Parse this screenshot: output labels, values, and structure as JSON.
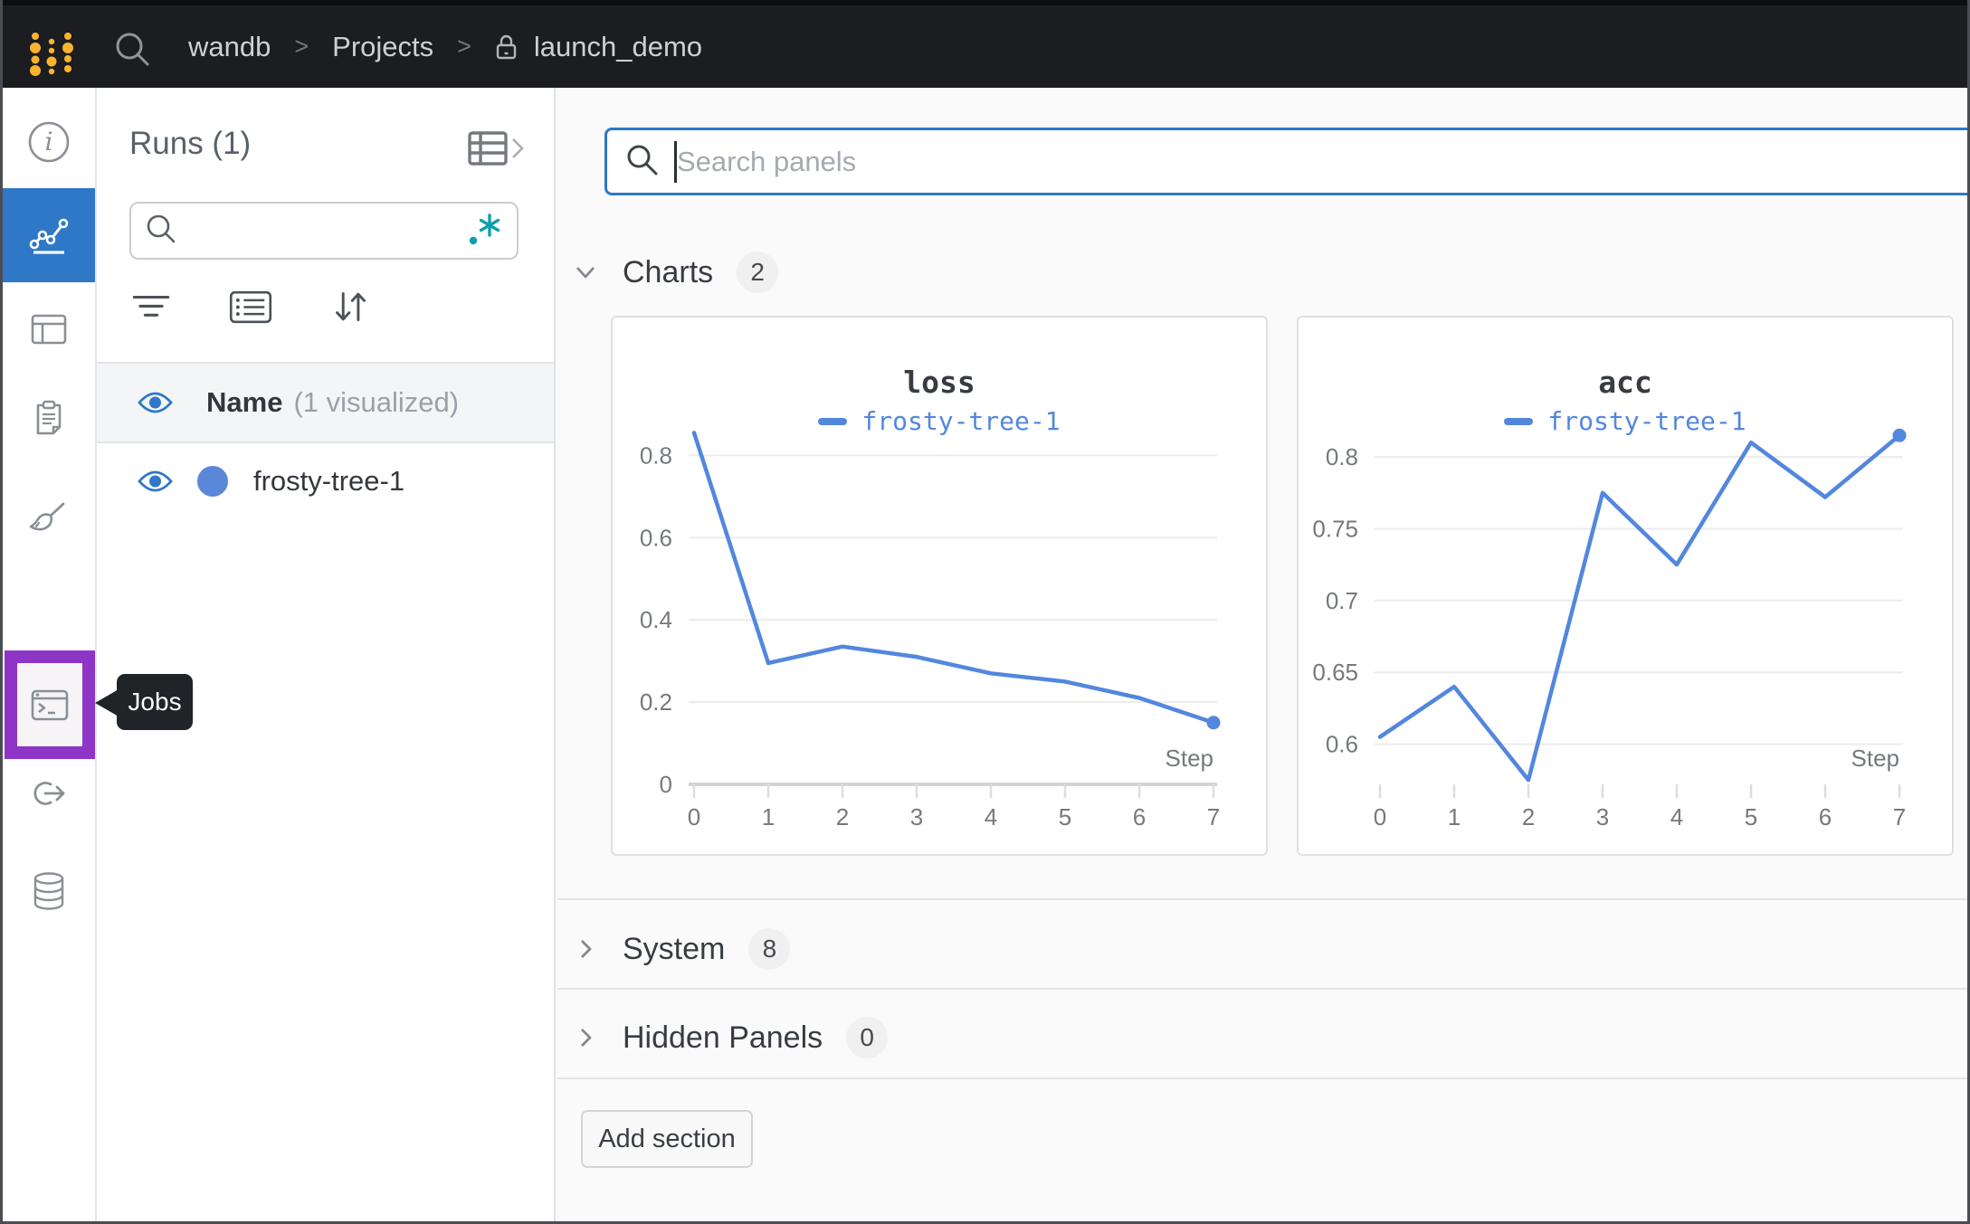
{
  "topbar": {
    "breadcrumb": {
      "team": "wandb",
      "section": "Projects",
      "project": "launch_demo",
      "separator": ">"
    }
  },
  "nav": {
    "tooltip_label": "Jobs",
    "items": [
      {
        "id": "overview",
        "icon": "info-icon",
        "selected": false
      },
      {
        "id": "workspace",
        "icon": "chart-icon",
        "selected": true
      },
      {
        "id": "runs-table",
        "icon": "table-icon",
        "selected": false
      },
      {
        "id": "logs",
        "icon": "clipboard-icon",
        "selected": false
      },
      {
        "id": "sweeps",
        "icon": "broom-icon",
        "selected": false
      },
      {
        "id": "jobs",
        "icon": "terminal-icon",
        "selected": false,
        "highlighted": true
      },
      {
        "id": "launch",
        "icon": "launch-arrow-icon",
        "selected": false
      },
      {
        "id": "artifacts",
        "icon": "database-icon",
        "selected": false
      }
    ]
  },
  "runs_panel": {
    "title": "Runs (1)",
    "search_value": "",
    "search_placeholder": "",
    "header_name": "Name",
    "header_annotation": "(1 visualized)",
    "runs": [
      {
        "name": "frosty-tree-1",
        "color": "#5b87d9",
        "visible": true
      }
    ]
  },
  "main": {
    "search_placeholder": "Search panels",
    "search_value": "",
    "sections": [
      {
        "label": "Charts",
        "count": "2",
        "expanded": true
      },
      {
        "label": "System",
        "count": "8",
        "expanded": false
      },
      {
        "label": "Hidden Panels",
        "count": "0",
        "expanded": false
      }
    ],
    "add_section_label": "Add section"
  },
  "chart_data": [
    {
      "type": "line",
      "title": "loss",
      "xlabel": "Step",
      "series": [
        {
          "name": "frosty-tree-1",
          "color": "#5387dd",
          "x": [
            0,
            1,
            2,
            3,
            4,
            5,
            6,
            7
          ],
          "y": [
            0.855,
            0.295,
            0.335,
            0.31,
            0.27,
            0.25,
            0.21,
            0.15
          ]
        }
      ],
      "yticks": [
        0,
        0.2,
        0.4,
        0.6,
        0.8
      ],
      "xticks": [
        0,
        1,
        2,
        3,
        4,
        5,
        6,
        7
      ],
      "ylim": [
        0,
        0.88
      ],
      "zero_axis": true,
      "grid": true,
      "legend_position": "top",
      "end_marker": true
    },
    {
      "type": "line",
      "title": "acc",
      "xlabel": "Step",
      "series": [
        {
          "name": "frosty-tree-1",
          "color": "#5387dd",
          "x": [
            0,
            1,
            2,
            3,
            4,
            5,
            6,
            7
          ],
          "y": [
            0.605,
            0.64,
            0.575,
            0.775,
            0.725,
            0.81,
            0.772,
            0.815
          ]
        }
      ],
      "yticks": [
        0.6,
        0.65,
        0.7,
        0.75,
        0.8
      ],
      "xticks": [
        0,
        1,
        2,
        3,
        4,
        5,
        6,
        7
      ],
      "ylim": [
        0.572,
        0.824
      ],
      "zero_axis": false,
      "grid": true,
      "legend_position": "top",
      "end_marker": true
    }
  ],
  "colors": {
    "topbar_bg": "#1b1d20",
    "accent_blue": "#2e78c7",
    "run_dot_blue": "#5b87d9",
    "line_blue": "#5387dd",
    "highlight_purple": "#8e35c8",
    "regex_teal": "#0e9fae",
    "logo_gold": "#fcb32d",
    "main_bg": "#fafafa"
  }
}
